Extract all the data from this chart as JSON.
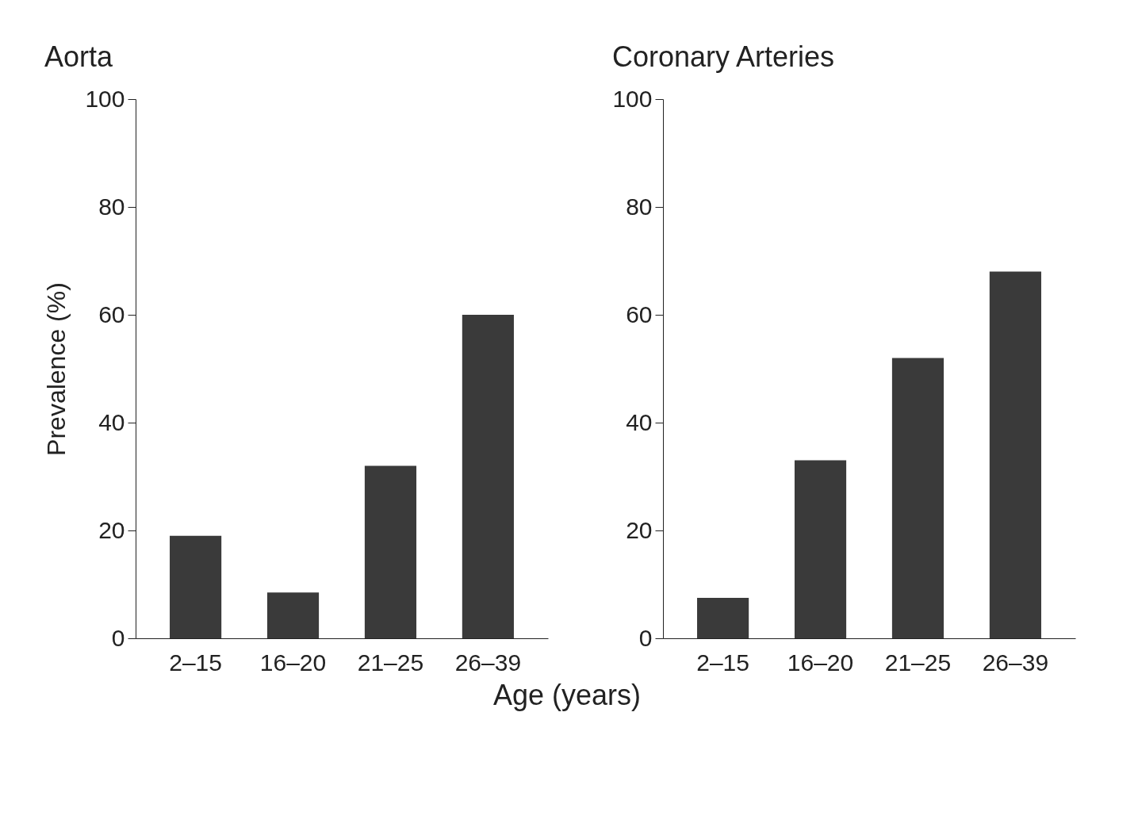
{
  "chart_data": [
    {
      "type": "bar",
      "title": "Aorta",
      "ylabel": "Prevalence (%)",
      "categories": [
        "2–15",
        "16–20",
        "21–25",
        "26–39"
      ],
      "values": [
        19,
        8.5,
        32,
        60
      ],
      "color": "#3a3a3a",
      "ylim": [
        0,
        100
      ],
      "yticks": [
        0,
        20,
        40,
        60,
        80,
        100
      ],
      "grid": false
    },
    {
      "type": "bar",
      "title": "Coronary Arteries",
      "xlabel": "Age (years)",
      "categories": [
        "2–15",
        "16–20",
        "21–25",
        "26–39"
      ],
      "values": [
        7.5,
        33,
        52,
        68
      ],
      "color": "#3a3a3a",
      "ylim": [
        0,
        100
      ],
      "yticks": [
        0,
        20,
        40,
        60,
        80,
        100
      ],
      "grid": false
    }
  ]
}
